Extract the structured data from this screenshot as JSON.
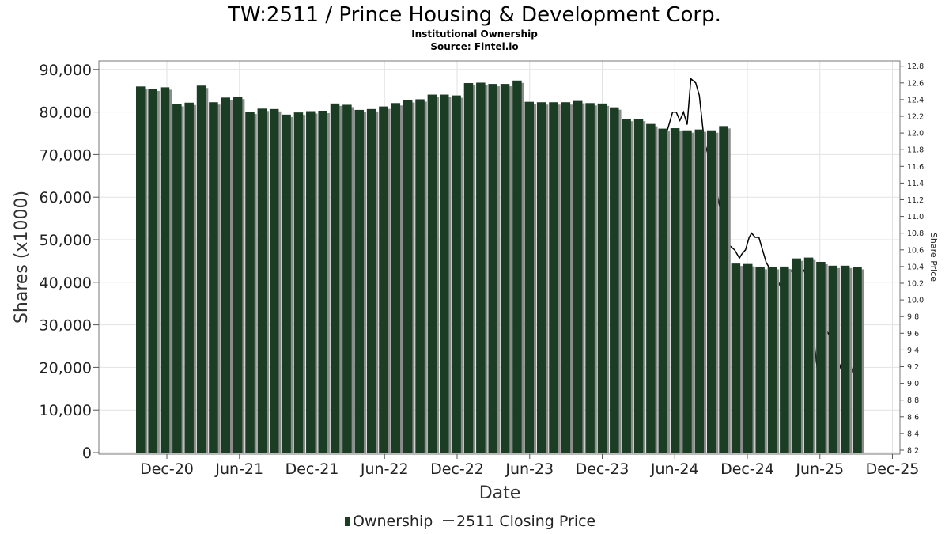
{
  "title": "TW:2511 / Prince Housing & Development Corp.",
  "subtitle": "Institutional Ownership",
  "source": "Source: Fintel.io",
  "chart_data": {
    "type": "bar",
    "title": "TW:2511 / Prince Housing & Development Corp.",
    "xlabel": "Date",
    "ylabel": "Shares (x1000)",
    "y2label": "Share Price",
    "ylim": [
      0,
      92000
    ],
    "y2lim": [
      8.2,
      12.85
    ],
    "yticks": [
      "0",
      "10,000",
      "20,000",
      "30,000",
      "40,000",
      "50,000",
      "60,000",
      "70,000",
      "80,000",
      "90,000"
    ],
    "y2ticks": [
      "8.2",
      "8.4",
      "8.6",
      "8.8",
      "9.0",
      "9.2",
      "9.4",
      "9.6",
      "9.8",
      "10.0",
      "10.2",
      "10.4",
      "10.6",
      "10.8",
      "11.0",
      "11.2",
      "11.4",
      "11.6",
      "11.8",
      "12.0",
      "12.2",
      "12.4",
      "12.6",
      "12.8"
    ],
    "xticks": [
      "Dec-20",
      "Jun-21",
      "Dec-21",
      "Jun-22",
      "Dec-22",
      "Jun-23",
      "Dec-23",
      "Jun-24",
      "Dec-24",
      "Jun-25",
      "Dec-25"
    ],
    "grid": true,
    "legend_position": "bottom",
    "series": [
      {
        "name": "Ownership",
        "color": "#1a3d24",
        "values": [
          86000,
          85500,
          85800,
          81900,
          82200,
          86200,
          82300,
          83400,
          83600,
          80100,
          80800,
          80700,
          79400,
          79900,
          80200,
          80300,
          82000,
          81700,
          80500,
          80700,
          81300,
          82100,
          82800,
          83000,
          84100,
          84100,
          83900,
          86800,
          86900,
          86600,
          86600,
          87400,
          82400,
          82300,
          82300,
          82300,
          82600,
          82100,
          82000,
          81100,
          78400,
          78400,
          77200,
          76100,
          76200,
          75700,
          75900,
          75700,
          76700,
          44400,
          44300,
          43600,
          43600,
          43700,
          45600,
          45800,
          44800,
          43900,
          43900,
          43600
        ]
      },
      {
        "name": "2511 Closing Price",
        "color": "#000000",
        "type": "line",
        "points": [
          [
            43.0,
            11.9
          ],
          [
            43.4,
            12.05
          ],
          [
            43.8,
            12.25
          ],
          [
            44.1,
            12.25
          ],
          [
            44.4,
            12.15
          ],
          [
            44.7,
            12.25
          ],
          [
            45.0,
            12.1
          ],
          [
            45.3,
            12.65
          ],
          [
            45.7,
            12.6
          ],
          [
            46.0,
            12.45
          ],
          [
            46.4,
            11.9
          ],
          [
            46.8,
            11.7
          ],
          [
            47.3,
            11.4
          ],
          [
            47.7,
            11.1
          ],
          [
            48.1,
            10.8
          ],
          [
            48.5,
            10.65
          ],
          [
            48.9,
            10.6
          ],
          [
            49.3,
            10.5
          ],
          [
            49.5,
            10.55
          ],
          [
            49.8,
            10.6
          ],
          [
            50.1,
            10.75
          ],
          [
            50.3,
            10.8
          ],
          [
            50.6,
            10.75
          ],
          [
            50.9,
            10.75
          ],
          [
            51.2,
            10.6
          ],
          [
            51.5,
            10.45
          ],
          [
            51.9,
            10.35
          ],
          [
            52.3,
            10.3
          ],
          [
            52.7,
            10.15
          ],
          [
            53.1,
            10.25
          ],
          [
            53.6,
            10.35
          ],
          [
            54.0,
            10.45
          ],
          [
            54.4,
            10.4
          ],
          [
            54.8,
            10.3
          ],
          [
            55.2,
            10.05
          ],
          [
            55.5,
            9.45
          ],
          [
            55.8,
            9.05
          ],
          [
            56.1,
            9.7
          ],
          [
            56.4,
            9.65
          ],
          [
            56.8,
            9.55
          ],
          [
            57.1,
            9.4
          ],
          [
            57.5,
            9.15
          ],
          [
            57.8,
            9.3
          ],
          [
            58.2,
            9.35
          ],
          [
            58.6,
            9.15
          ],
          [
            58.9,
            9.3
          ],
          [
            59.3,
            9.05
          ]
        ]
      }
    ]
  },
  "legend": {
    "ownership_label": "Ownership",
    "price_label": "2511 Closing Price"
  }
}
